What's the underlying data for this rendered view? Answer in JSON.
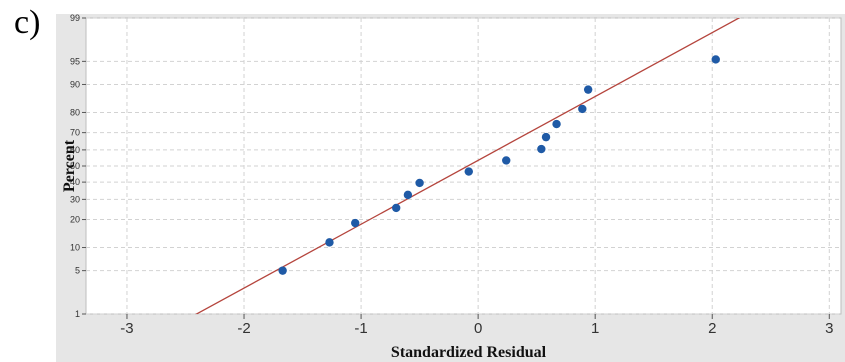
{
  "panel_label": "c)",
  "chart_data": {
    "type": "scatter",
    "scale_y": "normal-probability",
    "xlabel": "Standardized Residual",
    "ylabel": "Percent",
    "xlim": [
      -3.35,
      3.1
    ],
    "ylim": [
      1,
      99
    ],
    "x_ticks": [
      -3,
      -2,
      -1,
      0,
      1,
      2,
      3
    ],
    "x_tick_labels": [
      "-3",
      "-2",
      "-1",
      "0",
      "1",
      "2",
      "3"
    ],
    "y_ticks": [
      1,
      5,
      10,
      20,
      30,
      40,
      50,
      60,
      70,
      80,
      90,
      95,
      99
    ],
    "y_tick_labels": [
      "1",
      "5",
      "10",
      "20",
      "30",
      "40",
      "50",
      "60",
      "70",
      "80",
      "90",
      "95",
      "99"
    ],
    "grid": true,
    "series": [
      {
        "points": [
          {
            "x": -1.67,
            "y": 5
          },
          {
            "x": -1.27,
            "y": 11.5
          },
          {
            "x": -1.05,
            "y": 18.5
          },
          {
            "x": -0.7,
            "y": 25.5
          },
          {
            "x": -0.6,
            "y": 32.5
          },
          {
            "x": -0.5,
            "y": 39.5
          },
          {
            "x": -0.08,
            "y": 46.5
          },
          {
            "x": 0.24,
            "y": 53.5
          },
          {
            "x": 0.54,
            "y": 60.5
          },
          {
            "x": 0.58,
            "y": 67.5
          },
          {
            "x": 0.67,
            "y": 74.5
          },
          {
            "x": 0.89,
            "y": 81.5
          },
          {
            "x": 0.94,
            "y": 88.5
          },
          {
            "x": 2.03,
            "y": 95.3
          }
        ]
      }
    ],
    "fit_line": {
      "mean": -0.0885,
      "sd": 0.996
    },
    "colors": {
      "plot_bg": "#ffffff",
      "frame_bg": "#e6e6e6",
      "grid": "#d2d2d2",
      "points": "#1f5aa6",
      "fit_line": "#b5453d"
    }
  }
}
